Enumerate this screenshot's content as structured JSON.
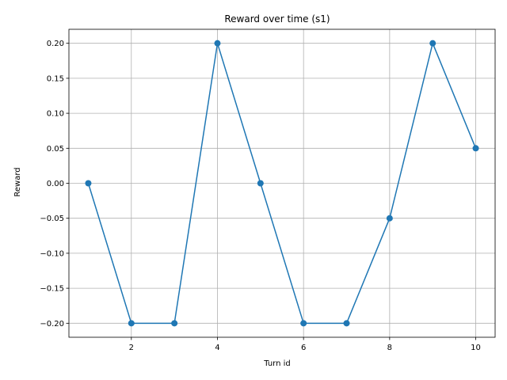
{
  "chart_data": {
    "type": "line",
    "title": "Reward over time (s1)",
    "xlabel": "Turn id",
    "ylabel": "Reward",
    "x": [
      1,
      2,
      3,
      4,
      5,
      6,
      7,
      8,
      9,
      10
    ],
    "series": [
      {
        "values": [
          0.0,
          -0.2,
          -0.2,
          0.2,
          0.0,
          -0.2,
          -0.2,
          -0.05,
          0.2,
          0.05
        ]
      }
    ],
    "xticks": [
      2,
      4,
      6,
      8,
      10
    ],
    "xtick_labels": [
      "2",
      "4",
      "6",
      "8",
      "10"
    ],
    "yticks": [
      -0.2,
      -0.15,
      -0.1,
      -0.05,
      0.0,
      0.05,
      0.1,
      0.15,
      0.2
    ],
    "ytick_labels": [
      "−0.20",
      "−0.15",
      "−0.10",
      "−0.05",
      "0.00",
      "0.05",
      "0.10",
      "0.15",
      "0.20"
    ],
    "xlim": [
      0.55,
      10.45
    ],
    "ylim": [
      -0.22,
      0.22
    ],
    "grid": true,
    "marker": "circle",
    "line_color": "#1f77b4"
  }
}
